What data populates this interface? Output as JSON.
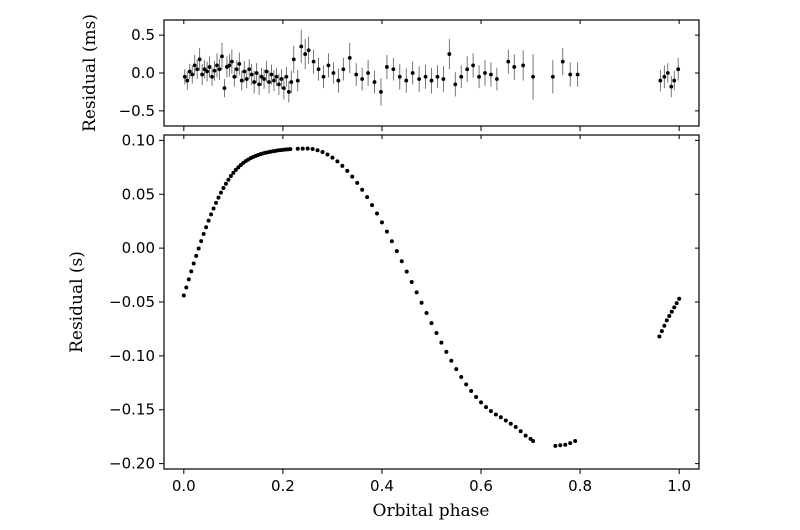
{
  "chart_data": [
    {
      "type": "scatter",
      "panel": "top",
      "xlabel": "",
      "ylabel": "Residual (ms)",
      "xlim": [
        -0.04,
        1.04
      ],
      "ylim": [
        -0.7,
        0.7
      ],
      "xticks": [
        0.0,
        0.2,
        0.4,
        0.6,
        0.8,
        1.0
      ],
      "xtick_labels_shown": false,
      "yticks": [
        -0.5,
        0.0,
        0.5
      ],
      "ytick_labels": [
        "−0.5",
        "0.0",
        "0.5"
      ],
      "error_bars": true,
      "points": [
        {
          "x": 0.002,
          "y": -0.05,
          "err": 0.1
        },
        {
          "x": 0.007,
          "y": -0.1,
          "err": 0.12
        },
        {
          "x": 0.012,
          "y": 0.02,
          "err": 0.1
        },
        {
          "x": 0.017,
          "y": -0.02,
          "err": 0.12
        },
        {
          "x": 0.022,
          "y": 0.1,
          "err": 0.14
        },
        {
          "x": 0.027,
          "y": 0.05,
          "err": 0.13
        },
        {
          "x": 0.032,
          "y": 0.18,
          "err": 0.15
        },
        {
          "x": 0.037,
          "y": -0.02,
          "err": 0.14
        },
        {
          "x": 0.042,
          "y": 0.05,
          "err": 0.12
        },
        {
          "x": 0.047,
          "y": 0.02,
          "err": 0.13
        },
        {
          "x": 0.052,
          "y": 0.08,
          "err": 0.14
        },
        {
          "x": 0.057,
          "y": -0.05,
          "err": 0.12
        },
        {
          "x": 0.062,
          "y": 0.03,
          "err": 0.13
        },
        {
          "x": 0.067,
          "y": 0.1,
          "err": 0.16
        },
        {
          "x": 0.072,
          "y": 0.05,
          "err": 0.14
        },
        {
          "x": 0.077,
          "y": 0.22,
          "err": 0.18
        },
        {
          "x": 0.082,
          "y": -0.2,
          "err": 0.12
        },
        {
          "x": 0.087,
          "y": 0.08,
          "err": 0.14
        },
        {
          "x": 0.092,
          "y": 0.1,
          "err": 0.15
        },
        {
          "x": 0.097,
          "y": 0.15,
          "err": 0.16
        },
        {
          "x": 0.102,
          "y": -0.05,
          "err": 0.13
        },
        {
          "x": 0.107,
          "y": 0.05,
          "err": 0.12
        },
        {
          "x": 0.112,
          "y": 0.12,
          "err": 0.15
        },
        {
          "x": 0.117,
          "y": -0.1,
          "err": 0.13
        },
        {
          "x": 0.122,
          "y": 0.02,
          "err": 0.14
        },
        {
          "x": 0.127,
          "y": -0.08,
          "err": 0.12
        },
        {
          "x": 0.132,
          "y": 0.05,
          "err": 0.13
        },
        {
          "x": 0.137,
          "y": -0.02,
          "err": 0.14
        },
        {
          "x": 0.142,
          "y": -0.12,
          "err": 0.15
        },
        {
          "x": 0.147,
          "y": 0.0,
          "err": 0.13
        },
        {
          "x": 0.152,
          "y": -0.15,
          "err": 0.14
        },
        {
          "x": 0.157,
          "y": -0.05,
          "err": 0.12
        },
        {
          "x": 0.162,
          "y": -0.08,
          "err": 0.13
        },
        {
          "x": 0.167,
          "y": 0.02,
          "err": 0.14
        },
        {
          "x": 0.172,
          "y": -0.12,
          "err": 0.15
        },
        {
          "x": 0.177,
          "y": -0.02,
          "err": 0.13
        },
        {
          "x": 0.182,
          "y": -0.1,
          "err": 0.14
        },
        {
          "x": 0.187,
          "y": -0.05,
          "err": 0.12
        },
        {
          "x": 0.192,
          "y": -0.15,
          "err": 0.14
        },
        {
          "x": 0.197,
          "y": -0.08,
          "err": 0.13
        },
        {
          "x": 0.202,
          "y": -0.2,
          "err": 0.15
        },
        {
          "x": 0.207,
          "y": -0.05,
          "err": 0.13
        },
        {
          "x": 0.212,
          "y": -0.25,
          "err": 0.14
        },
        {
          "x": 0.217,
          "y": -0.12,
          "err": 0.15
        },
        {
          "x": 0.222,
          "y": 0.18,
          "err": 0.18
        },
        {
          "x": 0.23,
          "y": -0.1,
          "err": 0.14
        },
        {
          "x": 0.237,
          "y": 0.35,
          "err": 0.22
        },
        {
          "x": 0.245,
          "y": 0.25,
          "err": 0.2
        },
        {
          "x": 0.252,
          "y": 0.3,
          "err": 0.18
        },
        {
          "x": 0.262,
          "y": 0.15,
          "err": 0.16
        },
        {
          "x": 0.272,
          "y": 0.05,
          "err": 0.15
        },
        {
          "x": 0.282,
          "y": -0.05,
          "err": 0.15
        },
        {
          "x": 0.292,
          "y": 0.1,
          "err": 0.16
        },
        {
          "x": 0.302,
          "y": 0.0,
          "err": 0.14
        },
        {
          "x": 0.312,
          "y": -0.1,
          "err": 0.16
        },
        {
          "x": 0.322,
          "y": 0.05,
          "err": 0.15
        },
        {
          "x": 0.335,
          "y": 0.2,
          "err": 0.2
        },
        {
          "x": 0.348,
          "y": -0.02,
          "err": 0.15
        },
        {
          "x": 0.36,
          "y": -0.08,
          "err": 0.15
        },
        {
          "x": 0.372,
          "y": 0.0,
          "err": 0.17
        },
        {
          "x": 0.385,
          "y": -0.12,
          "err": 0.15
        },
        {
          "x": 0.398,
          "y": -0.25,
          "err": 0.18
        },
        {
          "x": 0.41,
          "y": 0.08,
          "err": 0.16
        },
        {
          "x": 0.423,
          "y": 0.05,
          "err": 0.15
        },
        {
          "x": 0.436,
          "y": -0.05,
          "err": 0.17
        },
        {
          "x": 0.449,
          "y": -0.1,
          "err": 0.16
        },
        {
          "x": 0.462,
          "y": 0.0,
          "err": 0.15
        },
        {
          "x": 0.475,
          "y": -0.08,
          "err": 0.17
        },
        {
          "x": 0.488,
          "y": -0.05,
          "err": 0.16
        },
        {
          "x": 0.5,
          "y": -0.1,
          "err": 0.17
        },
        {
          "x": 0.512,
          "y": -0.05,
          "err": 0.15
        },
        {
          "x": 0.524,
          "y": -0.08,
          "err": 0.17
        },
        {
          "x": 0.536,
          "y": 0.25,
          "err": 0.2
        },
        {
          "x": 0.548,
          "y": -0.15,
          "err": 0.16
        },
        {
          "x": 0.56,
          "y": -0.05,
          "err": 0.15
        },
        {
          "x": 0.572,
          "y": 0.05,
          "err": 0.17
        },
        {
          "x": 0.584,
          "y": 0.1,
          "err": 0.16
        },
        {
          "x": 0.596,
          "y": -0.05,
          "err": 0.15
        },
        {
          "x": 0.608,
          "y": 0.0,
          "err": 0.17
        },
        {
          "x": 0.62,
          "y": -0.02,
          "err": 0.16
        },
        {
          "x": 0.632,
          "y": -0.08,
          "err": 0.15
        },
        {
          "x": 0.655,
          "y": 0.15,
          "err": 0.16
        },
        {
          "x": 0.667,
          "y": 0.08,
          "err": 0.17
        },
        {
          "x": 0.685,
          "y": 0.1,
          "err": 0.2
        },
        {
          "x": 0.705,
          "y": -0.05,
          "err": 0.3
        },
        {
          "x": 0.745,
          "y": -0.05,
          "err": 0.22
        },
        {
          "x": 0.765,
          "y": 0.15,
          "err": 0.18
        },
        {
          "x": 0.78,
          "y": -0.02,
          "err": 0.16
        },
        {
          "x": 0.795,
          "y": -0.02,
          "err": 0.16
        },
        {
          "x": 0.962,
          "y": -0.1,
          "err": 0.14
        },
        {
          "x": 0.97,
          "y": -0.05,
          "err": 0.15
        },
        {
          "x": 0.977,
          "y": 0.0,
          "err": 0.13
        },
        {
          "x": 0.984,
          "y": -0.18,
          "err": 0.14
        },
        {
          "x": 0.99,
          "y": -0.1,
          "err": 0.13
        },
        {
          "x": 0.998,
          "y": 0.05,
          "err": 0.15
        }
      ]
    },
    {
      "type": "scatter",
      "panel": "bottom",
      "xlabel": "Orbital phase",
      "ylabel": "Residual (s)",
      "xlim": [
        -0.04,
        1.04
      ],
      "ylim": [
        -0.205,
        0.105
      ],
      "xticks": [
        0.0,
        0.2,
        0.4,
        0.6,
        0.8,
        1.0
      ],
      "xtick_labels": [
        "0.0",
        "0.2",
        "0.4",
        "0.6",
        "0.8",
        "1.0"
      ],
      "yticks": [
        -0.2,
        -0.15,
        -0.1,
        -0.05,
        0.0,
        0.05,
        0.1
      ],
      "ytick_labels": [
        "−0.20",
        "−0.15",
        "−0.10",
        "−0.05",
        "0.00",
        "0.05",
        "0.10"
      ],
      "x": [
        0.0,
        0.005,
        0.01,
        0.015,
        0.02,
        0.025,
        0.03,
        0.035,
        0.04,
        0.045,
        0.05,
        0.055,
        0.06,
        0.065,
        0.07,
        0.075,
        0.08,
        0.085,
        0.09,
        0.095,
        0.1,
        0.105,
        0.11,
        0.115,
        0.12,
        0.125,
        0.13,
        0.135,
        0.14,
        0.145,
        0.15,
        0.155,
        0.16,
        0.165,
        0.17,
        0.175,
        0.18,
        0.185,
        0.19,
        0.195,
        0.2,
        0.205,
        0.21,
        0.215,
        0.23,
        0.24,
        0.25,
        0.26,
        0.27,
        0.28,
        0.29,
        0.3,
        0.31,
        0.32,
        0.33,
        0.34,
        0.35,
        0.36,
        0.37,
        0.38,
        0.39,
        0.4,
        0.41,
        0.42,
        0.43,
        0.44,
        0.45,
        0.46,
        0.47,
        0.48,
        0.49,
        0.5,
        0.51,
        0.52,
        0.53,
        0.54,
        0.55,
        0.56,
        0.57,
        0.58,
        0.59,
        0.6,
        0.61,
        0.62,
        0.63,
        0.64,
        0.65,
        0.66,
        0.67,
        0.68,
        0.69,
        0.7,
        0.705,
        0.75,
        0.76,
        0.77,
        0.78,
        0.79,
        0.96,
        0.965,
        0.97,
        0.975,
        0.98,
        0.985,
        0.99,
        0.995,
        1.0
      ],
      "y": [
        -0.044,
        -0.0365,
        -0.029,
        -0.0216,
        -0.0143,
        -0.0072,
        -0.0003,
        0.0065,
        0.0131,
        0.0194,
        0.0255,
        0.0313,
        0.0368,
        0.042,
        0.0469,
        0.0515,
        0.0558,
        0.0598,
        0.0635,
        0.0669,
        0.0699,
        0.0726,
        0.075,
        0.0772,
        0.0791,
        0.0807,
        0.0822,
        0.0835,
        0.0846,
        0.0856,
        0.0864,
        0.0872,
        0.0879,
        0.0885,
        0.089,
        0.0895,
        0.0899,
        0.0903,
        0.0907,
        0.091,
        0.0912,
        0.0915,
        0.0917,
        0.0919,
        0.0922,
        0.0924,
        0.0925,
        0.092,
        0.0909,
        0.0892,
        0.0869,
        0.084,
        0.0805,
        0.0764,
        0.0717,
        0.0664,
        0.0606,
        0.0542,
        0.0473,
        0.0399,
        0.0321,
        0.0239,
        0.0153,
        0.0064,
        -0.0028,
        -0.0122,
        -0.0218,
        -0.0314,
        -0.0411,
        -0.0507,
        -0.0602,
        -0.0696,
        -0.0788,
        -0.0877,
        -0.0963,
        -0.1045,
        -0.1123,
        -0.1196,
        -0.1264,
        -0.1326,
        -0.1382,
        -0.1432,
        -0.1476,
        -0.1513,
        -0.1544,
        -0.157,
        -0.16,
        -0.163,
        -0.166,
        -0.17,
        -0.174,
        -0.177,
        -0.179,
        -0.1835,
        -0.183,
        -0.1825,
        -0.181,
        -0.179,
        -0.082,
        -0.077,
        -0.072,
        -0.067,
        -0.063,
        -0.059,
        -0.055,
        -0.051,
        -0.047
      ]
    }
  ]
}
